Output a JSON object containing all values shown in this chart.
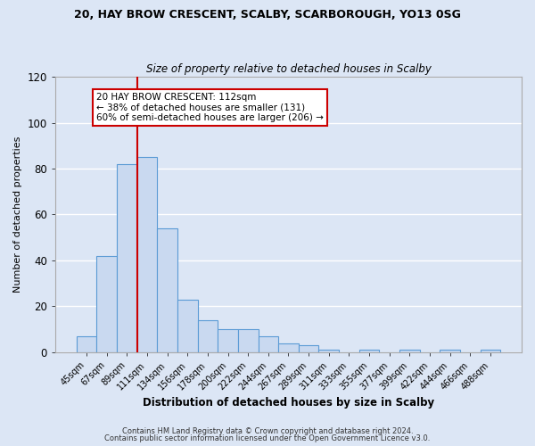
{
  "title": "20, HAY BROW CRESCENT, SCALBY, SCARBOROUGH, YO13 0SG",
  "subtitle": "Size of property relative to detached houses in Scalby",
  "xlabel": "Distribution of detached houses by size in Scalby",
  "ylabel": "Number of detached properties",
  "bar_labels": [
    "45sqm",
    "67sqm",
    "89sqm",
    "111sqm",
    "134sqm",
    "156sqm",
    "178sqm",
    "200sqm",
    "222sqm",
    "244sqm",
    "267sqm",
    "289sqm",
    "311sqm",
    "333sqm",
    "355sqm",
    "377sqm",
    "399sqm",
    "422sqm",
    "444sqm",
    "466sqm",
    "488sqm"
  ],
  "bar_values": [
    7,
    42,
    82,
    85,
    54,
    23,
    14,
    10,
    10,
    7,
    4,
    3,
    1,
    0,
    1,
    0,
    1,
    0,
    1,
    0,
    1
  ],
  "bar_color": "#c9d9f0",
  "bar_edge_color": "#5b9bd5",
  "background_color": "#dce6f5",
  "grid_color": "#ffffff",
  "vline_index": 3,
  "vline_color": "#cc0000",
  "annotation_text": "20 HAY BROW CRESCENT: 112sqm\n← 38% of detached houses are smaller (131)\n60% of semi-detached houses are larger (206) →",
  "annotation_box_color": "#ffffff",
  "annotation_box_edge": "#cc0000",
  "ylim": [
    0,
    120
  ],
  "yticks": [
    0,
    20,
    40,
    60,
    80,
    100,
    120
  ],
  "footer1": "Contains HM Land Registry data © Crown copyright and database right 2024.",
  "footer2": "Contains public sector information licensed under the Open Government Licence v3.0."
}
